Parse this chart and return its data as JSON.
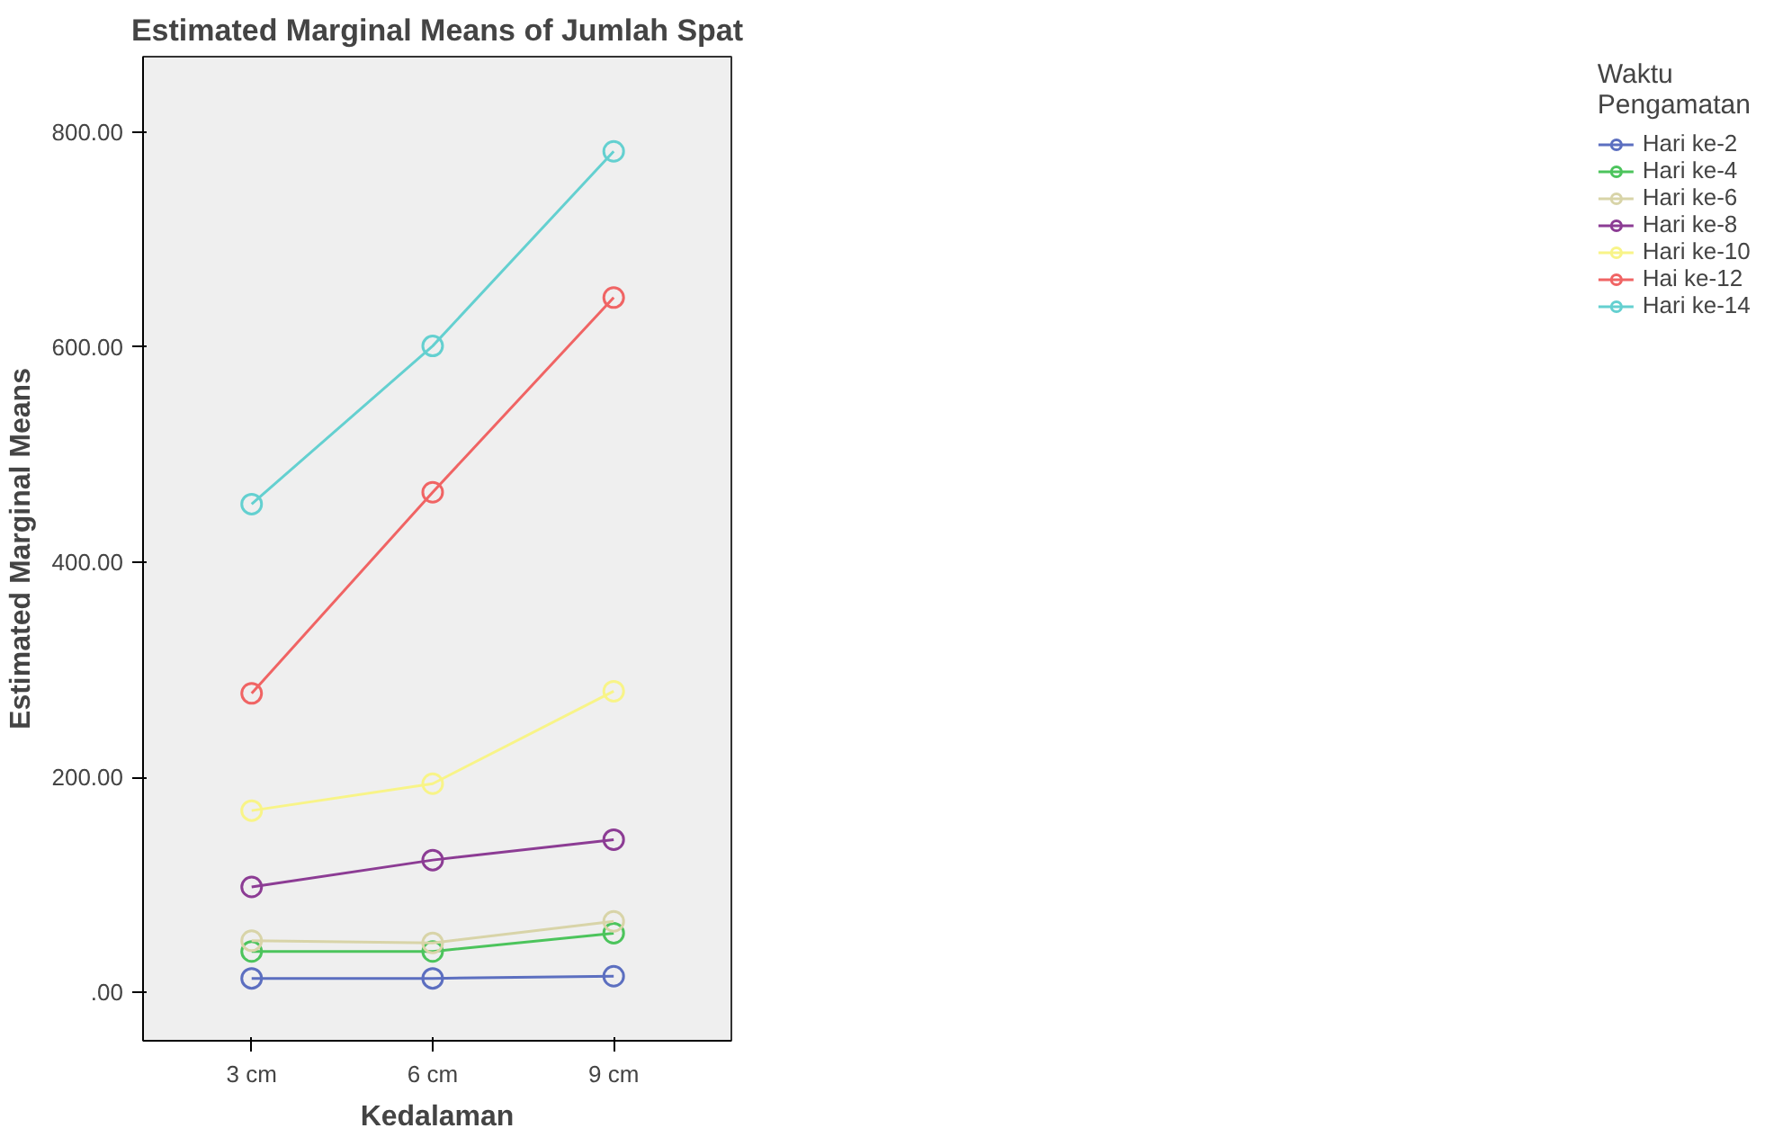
{
  "chart_data": {
    "type": "line",
    "title": "Estimated Marginal Means of Jumlah Spat",
    "xlabel": "Kedalaman",
    "ylabel": "Estimated Marginal Means",
    "legend_title": "Waktu\nPengamatan",
    "legend": "right",
    "grid": false,
    "marker": "circle",
    "line_style": "solid",
    "categories": [
      "3 cm",
      "6 cm",
      "9 cm"
    ],
    "ylim": [
      -45,
      870
    ],
    "yticks": [
      {
        "value": 0,
        "label": ".00"
      },
      {
        "value": 200,
        "label": "200.00"
      },
      {
        "value": 400,
        "label": "400.00"
      },
      {
        "value": 600,
        "label": "600.00"
      },
      {
        "value": 800,
        "label": "800.00"
      }
    ],
    "series": [
      {
        "name": "Hari ke-2",
        "color": "#5c6fc0",
        "values": [
          13,
          13,
          15
        ]
      },
      {
        "name": "Hari ke-4",
        "color": "#4cc45c",
        "values": [
          38,
          38,
          55
        ]
      },
      {
        "name": "Hari ke-6",
        "color": "#d8d4a8",
        "values": [
          48,
          46,
          66
        ]
      },
      {
        "name": "Hari ke-8",
        "color": "#8c3c94",
        "values": [
          98,
          123,
          142
        ]
      },
      {
        "name": "Hari ke-10",
        "color": "#f8f488",
        "values": [
          169,
          194,
          280
        ]
      },
      {
        "name": "Hai ke-12",
        "color": "#f06464",
        "values": [
          278,
          465,
          646
        ]
      },
      {
        "name": "Hari ke-14",
        "color": "#64d0d0",
        "values": [
          454,
          601,
          782
        ]
      }
    ]
  }
}
